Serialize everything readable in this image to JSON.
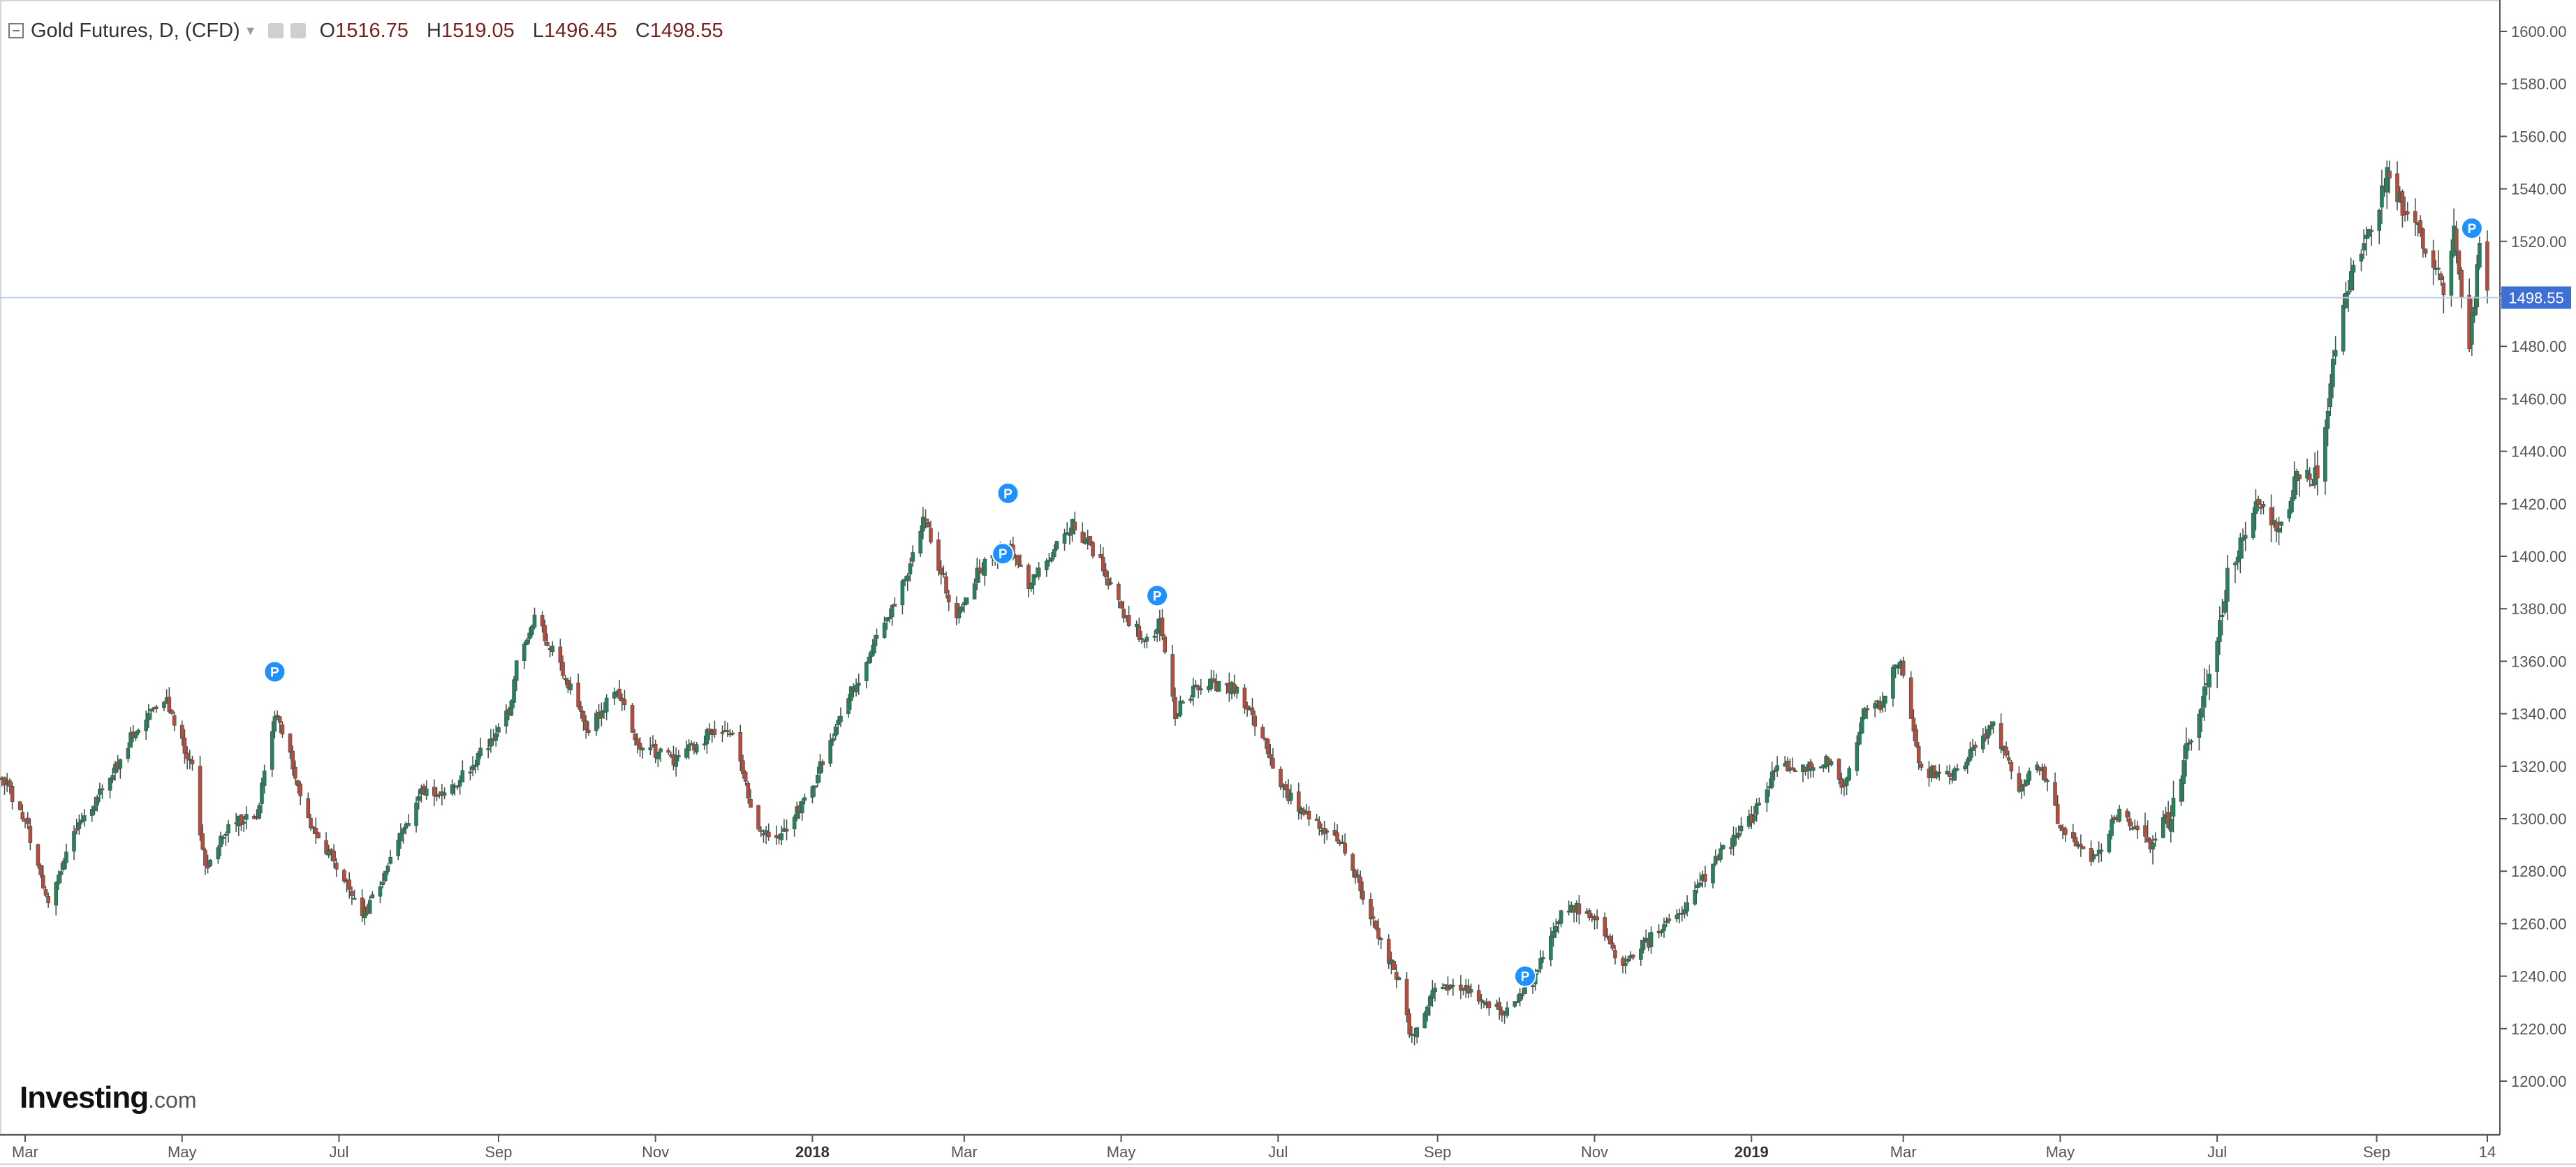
{
  "legend": {
    "title": "Gold Futures, D, (CFD)",
    "open_label": "O",
    "open": "1516.75",
    "high_label": "H",
    "high": "1519.05",
    "low_label": "L",
    "low": "1496.45",
    "close_label": "C",
    "close": "1498.55"
  },
  "logo": {
    "brand": "Investing",
    "suffix": ".com"
  },
  "colors": {
    "up": "#26825a",
    "down": "#b84a3e",
    "wick": "#3d4f47",
    "last_price_line": "#b9cce6",
    "last_price_badge": "#3d6fd6",
    "marker": "#1e90ff",
    "axis": "#555555"
  },
  "chart_data": {
    "type": "candlestick",
    "title": "Gold Futures, D, (CFD)",
    "xlabel": "",
    "ylabel": "",
    "ylim": [
      1200,
      1600
    ],
    "y_ticks": [
      "1200.00",
      "1220.00",
      "1240.00",
      "1260.00",
      "1280.00",
      "1300.00",
      "1320.00",
      "1340.00",
      "1360.00",
      "1380.00",
      "1400.00",
      "1420.00",
      "1440.00",
      "1460.00",
      "1480.00",
      "1500.00",
      "1520.00",
      "1540.00",
      "1560.00",
      "1580.00",
      "1600.00"
    ],
    "x_ticks": [
      {
        "label": "Mar",
        "date": "2017-03-01"
      },
      {
        "label": "May",
        "date": "2017-05-01"
      },
      {
        "label": "Jul",
        "date": "2017-07-01"
      },
      {
        "label": "Sep",
        "date": "2017-09-01"
      },
      {
        "label": "Nov",
        "date": "2017-11-01"
      },
      {
        "label": "2018",
        "date": "2018-01-01",
        "bold": true
      },
      {
        "label": "Mar",
        "date": "2018-03-01"
      },
      {
        "label": "May",
        "date": "2018-05-01"
      },
      {
        "label": "Jul",
        "date": "2018-07-01"
      },
      {
        "label": "Sep",
        "date": "2018-09-01"
      },
      {
        "label": "Nov",
        "date": "2018-11-01"
      },
      {
        "label": "2019",
        "date": "2019-01-01",
        "bold": true
      },
      {
        "label": "Mar",
        "date": "2019-03-01"
      },
      {
        "label": "May",
        "date": "2019-05-01"
      },
      {
        "label": "Jul",
        "date": "2019-07-01"
      },
      {
        "label": "Sep",
        "date": "2019-09-01"
      },
      {
        "label": "14",
        "date": "2019-10-14"
      }
    ],
    "x_range": [
      "2017-02-20",
      "2019-10-20"
    ],
    "last_price": "1498.55",
    "markers": [
      {
        "label": "P",
        "date": "2017-06-06",
        "price": 1356
      },
      {
        "label": "P",
        "date": "2018-03-18",
        "price": 1424
      },
      {
        "label": "P",
        "date": "2018-03-16",
        "price": 1401
      },
      {
        "label": "P",
        "date": "2018-05-15",
        "price": 1385
      },
      {
        "label": "P",
        "date": "2018-10-05",
        "price": 1240
      },
      {
        "label": "P",
        "date": "2019-10-08",
        "price": 1525
      }
    ],
    "anchors": [
      {
        "date": "2017-02-20",
        "price": 1316
      },
      {
        "date": "2017-03-01",
        "price": 1300
      },
      {
        "date": "2017-03-10",
        "price": 1266
      },
      {
        "date": "2017-03-20",
        "price": 1296
      },
      {
        "date": "2017-04-01",
        "price": 1312
      },
      {
        "date": "2017-04-15",
        "price": 1338
      },
      {
        "date": "2017-04-25",
        "price": 1344
      },
      {
        "date": "2017-05-05",
        "price": 1320
      },
      {
        "date": "2017-05-10",
        "price": 1280
      },
      {
        "date": "2017-05-20",
        "price": 1300
      },
      {
        "date": "2017-05-30",
        "price": 1300
      },
      {
        "date": "2017-06-06",
        "price": 1340
      },
      {
        "date": "2017-06-12",
        "price": 1325
      },
      {
        "date": "2017-06-20",
        "price": 1296
      },
      {
        "date": "2017-07-01",
        "price": 1282
      },
      {
        "date": "2017-07-10",
        "price": 1262
      },
      {
        "date": "2017-07-20",
        "price": 1282
      },
      {
        "date": "2017-08-01",
        "price": 1310
      },
      {
        "date": "2017-08-15",
        "price": 1312
      },
      {
        "date": "2017-08-25",
        "price": 1325
      },
      {
        "date": "2017-09-05",
        "price": 1340
      },
      {
        "date": "2017-09-08",
        "price": 1358
      },
      {
        "date": "2017-09-15",
        "price": 1378
      },
      {
        "date": "2017-09-25",
        "price": 1358
      },
      {
        "date": "2017-10-06",
        "price": 1334
      },
      {
        "date": "2017-10-16",
        "price": 1350
      },
      {
        "date": "2017-10-26",
        "price": 1328
      },
      {
        "date": "2017-11-08",
        "price": 1322
      },
      {
        "date": "2017-11-24",
        "price": 1334
      },
      {
        "date": "2017-12-01",
        "price": 1330
      },
      {
        "date": "2017-12-12",
        "price": 1293
      },
      {
        "date": "2017-12-22",
        "price": 1296
      },
      {
        "date": "2018-01-01",
        "price": 1312
      },
      {
        "date": "2018-01-12",
        "price": 1340
      },
      {
        "date": "2018-01-26",
        "price": 1368
      },
      {
        "date": "2018-02-08",
        "price": 1396
      },
      {
        "date": "2018-02-13",
        "price": 1415
      },
      {
        "date": "2018-02-26",
        "price": 1376
      },
      {
        "date": "2018-03-06",
        "price": 1394
      },
      {
        "date": "2018-03-18",
        "price": 1405
      },
      {
        "date": "2018-03-26",
        "price": 1388
      },
      {
        "date": "2018-04-04",
        "price": 1402
      },
      {
        "date": "2018-04-12",
        "price": 1412
      },
      {
        "date": "2018-04-22",
        "price": 1400
      },
      {
        "date": "2018-05-02",
        "price": 1378
      },
      {
        "date": "2018-05-10",
        "price": 1368
      },
      {
        "date": "2018-05-16",
        "price": 1374
      },
      {
        "date": "2018-05-22",
        "price": 1340
      },
      {
        "date": "2018-06-01",
        "price": 1352
      },
      {
        "date": "2018-06-14",
        "price": 1350
      },
      {
        "date": "2018-06-24",
        "price": 1334
      },
      {
        "date": "2018-07-02",
        "price": 1312
      },
      {
        "date": "2018-07-14",
        "price": 1300
      },
      {
        "date": "2018-07-28",
        "price": 1288
      },
      {
        "date": "2018-08-06",
        "price": 1262
      },
      {
        "date": "2018-08-17",
        "price": 1238
      },
      {
        "date": "2018-08-22",
        "price": 1216
      },
      {
        "date": "2018-09-01",
        "price": 1238
      },
      {
        "date": "2018-09-14",
        "price": 1234
      },
      {
        "date": "2018-09-28",
        "price": 1226
      },
      {
        "date": "2018-10-08",
        "price": 1238
      },
      {
        "date": "2018-10-20",
        "price": 1268
      },
      {
        "date": "2018-11-01",
        "price": 1262
      },
      {
        "date": "2018-11-12",
        "price": 1242
      },
      {
        "date": "2018-11-26",
        "price": 1258
      },
      {
        "date": "2018-12-06",
        "price": 1266
      },
      {
        "date": "2018-12-18",
        "price": 1284
      },
      {
        "date": "2019-01-01",
        "price": 1300
      },
      {
        "date": "2019-01-10",
        "price": 1318
      },
      {
        "date": "2019-01-22",
        "price": 1320
      },
      {
        "date": "2019-01-31",
        "price": 1322
      },
      {
        "date": "2019-02-06",
        "price": 1312
      },
      {
        "date": "2019-02-14",
        "price": 1342
      },
      {
        "date": "2019-02-20",
        "price": 1344
      },
      {
        "date": "2019-02-28",
        "price": 1362
      },
      {
        "date": "2019-03-08",
        "price": 1318
      },
      {
        "date": "2019-03-20",
        "price": 1316
      },
      {
        "date": "2019-03-28",
        "price": 1326
      },
      {
        "date": "2019-04-05",
        "price": 1336
      },
      {
        "date": "2019-04-14",
        "price": 1312
      },
      {
        "date": "2019-04-24",
        "price": 1320
      },
      {
        "date": "2019-05-02",
        "price": 1294
      },
      {
        "date": "2019-05-14",
        "price": 1284
      },
      {
        "date": "2019-05-24",
        "price": 1304
      },
      {
        "date": "2019-06-03",
        "price": 1290
      },
      {
        "date": "2019-06-12",
        "price": 1300
      },
      {
        "date": "2019-06-20",
        "price": 1330
      },
      {
        "date": "2019-06-28",
        "price": 1356
      },
      {
        "date": "2019-07-05",
        "price": 1392
      },
      {
        "date": "2019-07-16",
        "price": 1418
      },
      {
        "date": "2019-07-24",
        "price": 1410
      },
      {
        "date": "2019-08-02",
        "price": 1432
      },
      {
        "date": "2019-08-09",
        "price": 1430
      },
      {
        "date": "2019-08-16",
        "price": 1480
      },
      {
        "date": "2019-08-23",
        "price": 1510
      },
      {
        "date": "2019-09-02",
        "price": 1532
      },
      {
        "date": "2019-09-05",
        "price": 1548
      },
      {
        "date": "2019-09-10",
        "price": 1536
      },
      {
        "date": "2019-09-20",
        "price": 1518
      },
      {
        "date": "2019-09-27",
        "price": 1500
      },
      {
        "date": "2019-10-01",
        "price": 1522
      },
      {
        "date": "2019-10-07",
        "price": 1480
      },
      {
        "date": "2019-10-11",
        "price": 1516
      },
      {
        "date": "2019-10-14",
        "price": 1498
      }
    ]
  }
}
